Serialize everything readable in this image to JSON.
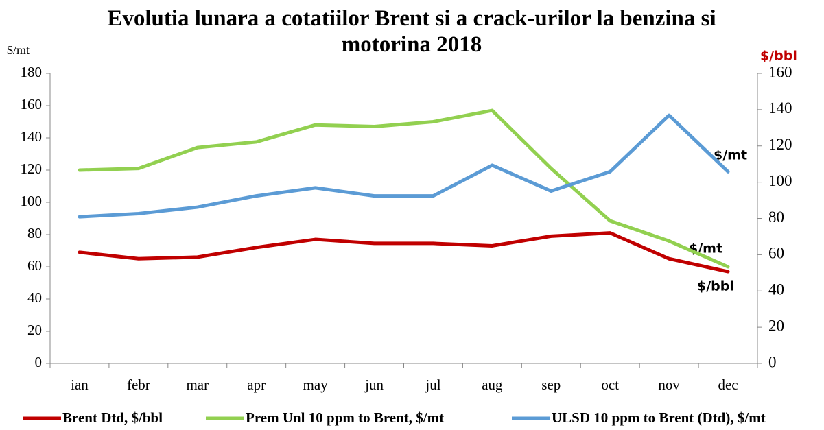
{
  "chart_data": {
    "type": "line",
    "title": "Evolutia lunara a cotatiilor Brent si a crack-urilor la benzina si motorina 2018",
    "y_label": "$/mt",
    "y2_label": "$/bbl",
    "categories": [
      "ian",
      "febr",
      "mar",
      "apr",
      "may",
      "jun",
      "jul",
      "aug",
      "sep",
      "oct",
      "nov",
      "dec"
    ],
    "series": [
      {
        "name": "Brent Dtd, $/bbl",
        "color": "#c00000",
        "values": [
          69,
          65,
          66,
          72,
          77,
          74.5,
          74.5,
          73,
          79,
          81,
          65,
          57
        ]
      },
      {
        "name": "Prem Unl 10 ppm to Brent, $/mt",
        "color": "#92d050",
        "values": [
          120,
          121,
          134,
          137.5,
          148,
          147,
          150,
          157,
          121,
          88.5,
          76,
          60
        ]
      },
      {
        "name": "ULSD 10 ppm to Brent (Dtd), $/mt",
        "color": "#5b9bd5",
        "values": [
          91,
          93,
          97,
          104,
          109,
          104,
          104,
          123,
          107,
          119,
          154,
          119
        ]
      }
    ],
    "ylim": [
      0,
      180
    ],
    "yticks": [
      0,
      20,
      40,
      60,
      80,
      100,
      120,
      140,
      160,
      180
    ],
    "y2lim": [
      0,
      160
    ],
    "y2ticks": [
      0,
      20,
      40,
      60,
      80,
      100,
      120,
      140,
      160
    ],
    "annotations": [
      "$/mt",
      "$/mt",
      "$/bbl"
    ]
  }
}
